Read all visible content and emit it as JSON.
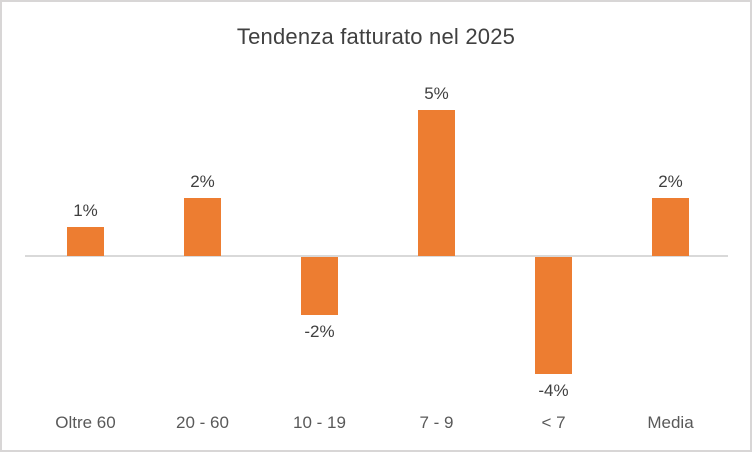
{
  "chart_data": {
    "type": "bar",
    "title": "Tendenza fatturato nel 2025",
    "categories": [
      "Oltre 60",
      "20 - 60",
      "10 - 19",
      "7 - 9",
      "< 7",
      "Media"
    ],
    "values": [
      1,
      2,
      -2,
      5,
      -4,
      2
    ],
    "data_labels": [
      "1%",
      "2%",
      "-2%",
      "5%",
      "-4%",
      "2%"
    ],
    "xlabel": "",
    "ylabel": "",
    "ylim": [
      -5,
      5.5
    ],
    "grid": false,
    "legend": "none",
    "y_axis_labels_visible": false,
    "colors": {
      "bar": "#ED7D31",
      "axis_line": "#D9D9D9",
      "title_text": "#404040",
      "data_label_text": "#404040",
      "category_label_text": "#595959",
      "frame_border": "#D8D6D6",
      "background": "#FFFFFF"
    }
  }
}
